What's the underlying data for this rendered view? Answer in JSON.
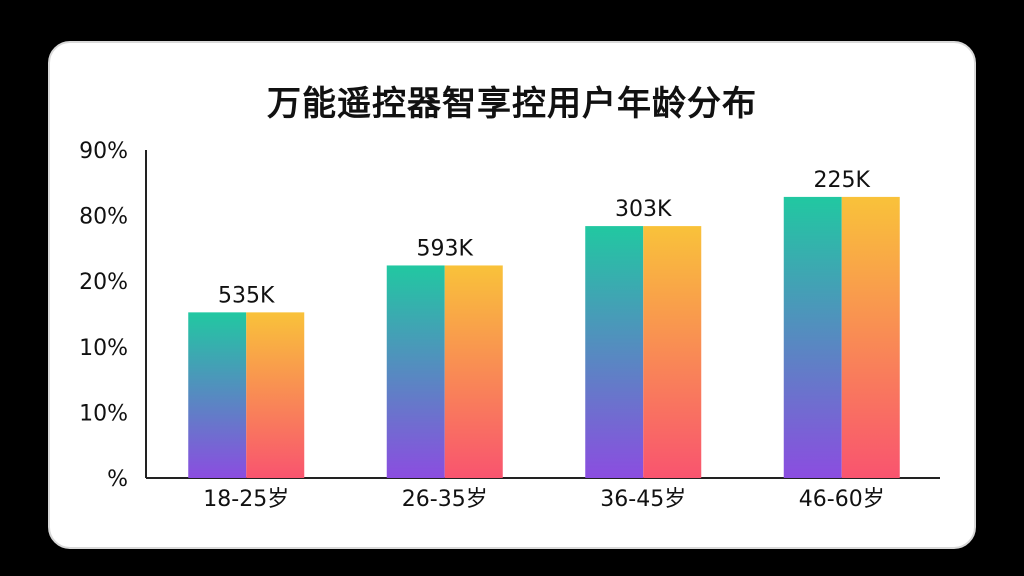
{
  "chart_data": {
    "type": "bar",
    "title": "万能遥控器智享控用户年龄分布",
    "categories": [
      "18-25岁",
      "26-35岁",
      "36-45岁",
      "46-60岁"
    ],
    "y_tick_labels": [
      "%",
      "10%",
      "10%",
      "20%",
      "80%",
      "90%"
    ],
    "bar_levels": [
      0.505,
      0.648,
      0.768,
      0.857
    ],
    "data_labels": [
      "535K",
      "593K",
      "303K",
      "225K"
    ],
    "series": [
      {
        "values": [
          0.505,
          0.648,
          0.768,
          0.857
        ]
      },
      {
        "values": [
          0.505,
          0.648,
          0.768,
          0.857
        ]
      }
    ],
    "grid": false,
    "colors": {
      "series1_top": "#21c8a1",
      "series1_bottom": "#8b4de0",
      "series2_top": "#f9c23a",
      "series2_bottom": "#f9546f",
      "axis": "#222222",
      "text": "#111111"
    }
  }
}
